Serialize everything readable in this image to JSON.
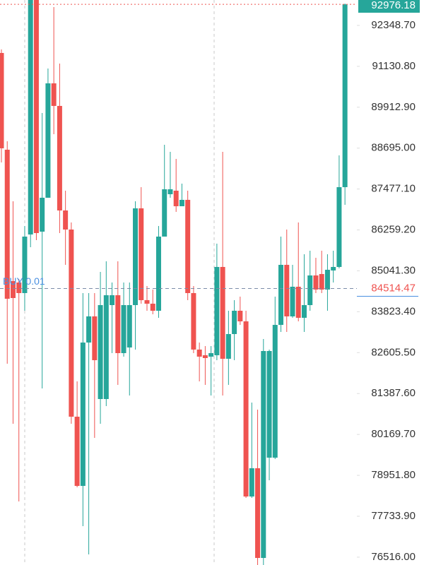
{
  "chart_data": {
    "type": "candlestick",
    "up_color": "#26a69a",
    "down_color": "#ef5350",
    "ylim": [
      76282,
      93106
    ],
    "yticks": [
      {
        "value": 92348.7,
        "label": "92348.70"
      },
      {
        "value": 91130.8,
        "label": "91130.80"
      },
      {
        "value": 89912.9,
        "label": "89912.90"
      },
      {
        "value": 88695,
        "label": "88695.00"
      },
      {
        "value": 87477.1,
        "label": "87477.10"
      },
      {
        "value": 86259.2,
        "label": "86259.20"
      },
      {
        "value": 85041.3,
        "label": "85041.30"
      },
      {
        "value": 83823.4,
        "label": "83823.40"
      },
      {
        "value": 82605.5,
        "label": "82605.50"
      },
      {
        "value": 81387.6,
        "label": "81387.60"
      },
      {
        "value": 80169.7,
        "label": "80169.70"
      },
      {
        "value": 78951.8,
        "label": "78951.80"
      },
      {
        "value": 77733.9,
        "label": "77733.90"
      },
      {
        "value": 76516,
        "label": "76516.00"
      }
    ],
    "current_price": {
      "value": 92976.18,
      "label": "92976.18"
    },
    "order": {
      "text": "BUY 0.01",
      "price": {
        "value": 84514.47,
        "label": "84514.47"
      }
    },
    "open": [
      91529,
      88648,
      84736,
      84694,
      84379,
      86124,
      93400,
      86208,
      87218,
      90624,
      89952,
      86839,
      86271,
      80698,
      78637,
      82906,
      83685,
      81224,
      81224,
      84021,
      84315,
      82591,
      82759,
      84021,
      86902,
      84168,
      84063,
      83853,
      86061,
      87323,
      87428,
      86965,
      87155,
      84379,
      82697,
      82528,
      82486,
      82528,
      85157,
      82423,
      83159,
      83853,
      83537,
      78322,
      79163,
      76492,
      79478,
      79478,
      83432,
      85220,
      83685,
      84568,
      83643,
      84021,
      84904,
      84946,
      84484,
      85052,
      85157,
      87533
    ],
    "high": [
      91634,
      88900,
      87112,
      84799,
      86376,
      93500,
      93500,
      89741,
      91066,
      92896,
      91213,
      87428,
      86481,
      81750,
      84379,
      84379,
      84379,
      85010,
      85325,
      84694,
      85325,
      84694,
      84694,
      87112,
      87533,
      84589,
      84484,
      86376,
      88795,
      88585,
      88374,
      87638,
      87428,
      84589,
      82906,
      82801,
      82801,
      85851,
      88585,
      83853,
      84168,
      84273,
      83853,
      81119,
      80909,
      83012,
      82697,
      84273,
      86061,
      86271,
      85220,
      86481,
      85535,
      85640,
      85430,
      85640,
      85535,
      85640,
      88479,
      93001
    ],
    "low": [
      88269,
      82276,
      80488,
      78175,
      83853,
      85745,
      85956,
      81540,
      87218,
      89110,
      86166,
      85220,
      80488,
      78595,
      77438,
      76597,
      80067,
      80488,
      81014,
      82591,
      81645,
      82486,
      81329,
      82697,
      84063,
      83853,
      83748,
      83643,
      86061,
      87218,
      86797,
      86965,
      84168,
      82591,
      81750,
      81645,
      81329,
      82381,
      81329,
      81645,
      82381,
      83432,
      78280,
      78280,
      76282,
      76282,
      78806,
      79436,
      83222,
      83222,
      83643,
      83537,
      83222,
      83853,
      84379,
      84379,
      83853,
      84694,
      85115,
      87007
    ],
    "close": [
      88690,
      84210,
      84231,
      84379,
      86061,
      93400,
      86166,
      87218,
      90624,
      89952,
      86839,
      86271,
      80698,
      78637,
      82906,
      83685,
      82381,
      84021,
      84315,
      84315,
      82591,
      84021,
      84021,
      86902,
      84168,
      84063,
      83853,
      86061,
      87470,
      87470,
      86965,
      87155,
      84379,
      82697,
      82486,
      82444,
      82591,
      85157,
      82423,
      83159,
      83853,
      83537,
      78322,
      79163,
      76492,
      82654,
      82654,
      83432,
      85220,
      83685,
      84568,
      83643,
      84021,
      84904,
      84484,
      84484,
      85073,
      85157,
      87533,
      92976
    ]
  }
}
